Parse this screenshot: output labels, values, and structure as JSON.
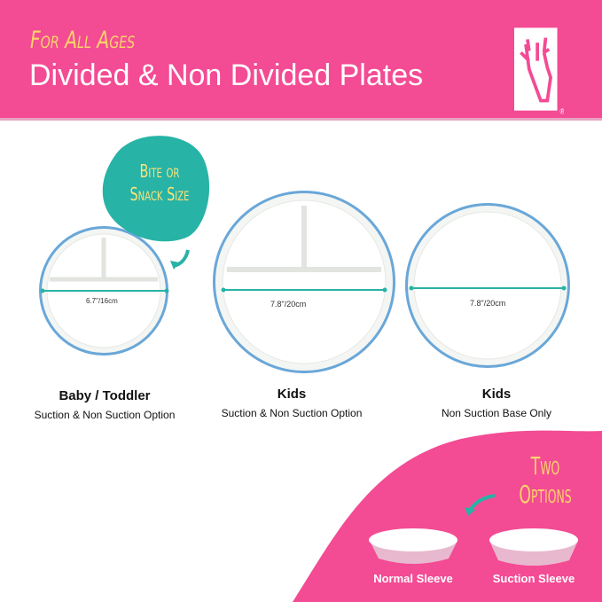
{
  "header": {
    "tagline": "For All Ages",
    "title": "Divided & Non Divided Plates",
    "logo": "deer antler logo ®"
  },
  "callout": {
    "line1": "Bite or",
    "line2": "Snack Size"
  },
  "plates": [
    {
      "name": "Baby / Toddler",
      "subtitle": "Suction & Non Suction Option",
      "size": "6.7\"/16cm"
    },
    {
      "name": "Kids",
      "subtitle": "Suction & Non Suction Option",
      "size": "7.8\"/20cm"
    },
    {
      "name": "Kids",
      "subtitle": "Non Suction Base Only",
      "size": "7.8\"/20cm"
    }
  ],
  "options": {
    "line1": "Two",
    "line2": "Options",
    "sleeves": [
      "Normal Sleeve",
      "Suction Sleeve"
    ]
  },
  "colors": {
    "pink": "#f34b94",
    "yellow": "#fbd46a",
    "teal": "#27b3a6",
    "rim": "#6aa7d8"
  }
}
